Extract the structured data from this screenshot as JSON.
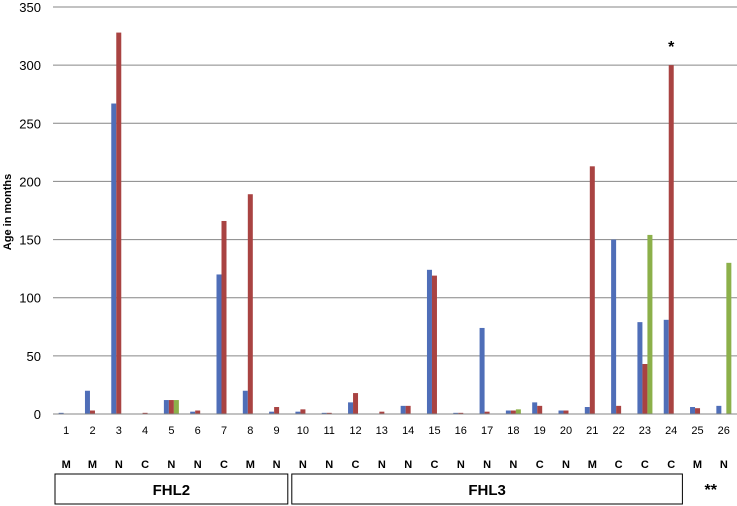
{
  "chart_data": {
    "type": "bar",
    "ylabel": "Age in months",
    "xlabel": "",
    "ylim": [
      0,
      350
    ],
    "yticks": [
      0,
      50,
      100,
      150,
      200,
      250,
      300,
      350
    ],
    "grid": true,
    "categories": [
      "1",
      "2",
      "3",
      "4",
      "5",
      "6",
      "7",
      "8",
      "9",
      "10",
      "11",
      "12",
      "13",
      "14",
      "15",
      "16",
      "17",
      "18",
      "19",
      "20",
      "21",
      "22",
      "23",
      "24",
      "25",
      "26"
    ],
    "category_codes": [
      "M",
      "M",
      "N",
      "C",
      "N",
      "N",
      "C",
      "M",
      "N",
      "N",
      "N",
      "C",
      "N",
      "N",
      "C",
      "N",
      "N",
      "N",
      "C",
      "N",
      "M",
      "C",
      "C",
      "C",
      "M",
      "N"
    ],
    "series": [
      {
        "color": "#4F6EB8",
        "values": [
          1,
          20,
          267,
          0,
          12,
          2,
          120,
          20,
          2,
          2,
          1,
          10,
          0,
          7,
          124,
          1,
          74,
          3,
          10,
          3,
          6,
          150,
          79,
          81,
          6,
          7
        ]
      },
      {
        "color": "#A94342",
        "values": [
          0,
          3,
          328,
          1,
          12,
          3,
          166,
          189,
          6,
          4,
          1,
          18,
          2,
          7,
          119,
          1,
          2,
          3,
          7,
          3,
          213,
          7,
          43,
          300,
          5,
          0
        ]
      },
      {
        "color": "#8CB04A",
        "values": [
          0,
          0,
          0,
          0,
          12,
          0,
          0,
          0,
          0,
          0,
          0,
          0,
          0,
          0,
          0,
          0,
          0,
          4,
          0,
          0,
          0,
          0,
          154,
          0,
          0,
          130
        ]
      }
    ],
    "groups": [
      {
        "label": "FHL2",
        "from": 1,
        "to": 9
      },
      {
        "label": "FHL3",
        "from": 10,
        "to": 24
      }
    ],
    "annotations": [
      {
        "text": "*",
        "category": "24"
      },
      {
        "text": "**",
        "category": "25-26"
      }
    ]
  }
}
